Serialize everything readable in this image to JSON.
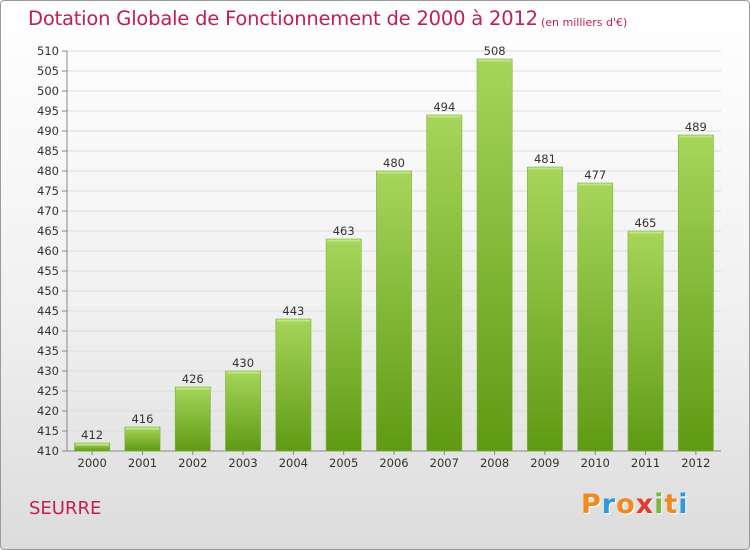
{
  "header": {
    "title": "Dotation Globale de Fonctionnement de 2000 à 2012",
    "subtitle": "(en milliers d'€)"
  },
  "footer": {
    "place": "SEURRE",
    "logo_letters": [
      "P",
      "r",
      "o",
      "x",
      "i",
      "t",
      "i"
    ],
    "logo_colors": [
      "#f08a1c",
      "#2f9ad7",
      "#f08a1c",
      "#e23a2c",
      "#7ab83b",
      "#f08a1c",
      "#2f9ad7"
    ]
  },
  "chart_data": {
    "type": "bar",
    "categories": [
      "2000",
      "2001",
      "2002",
      "2003",
      "2004",
      "2005",
      "2006",
      "2007",
      "2008",
      "2009",
      "2010",
      "2011",
      "2012"
    ],
    "values": [
      412,
      416,
      426,
      430,
      443,
      463,
      480,
      494,
      508,
      481,
      477,
      465,
      489
    ],
    "data_labels": [
      "412",
      "416",
      "426",
      "430",
      "443",
      "463",
      "480",
      "494",
      "508",
      "481",
      "477",
      "465",
      "489"
    ],
    "ylim": [
      410,
      510
    ],
    "yticks": [
      410,
      415,
      420,
      425,
      430,
      435,
      440,
      445,
      450,
      455,
      460,
      465,
      470,
      475,
      480,
      485,
      490,
      495,
      500,
      505,
      510
    ],
    "grid": true,
    "bar_color_top": "#a6d55a",
    "bar_color_bottom": "#5f9a14"
  }
}
